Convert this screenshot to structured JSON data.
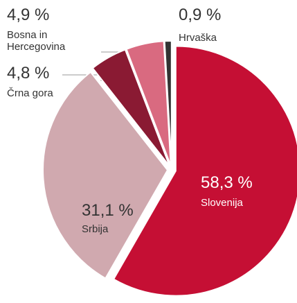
{
  "chart_data": {
    "type": "pie",
    "categories": [
      "Slovenija",
      "Srbija",
      "Črna gora",
      "Bosna in Hercegovina",
      "Hrvaška"
    ],
    "values": [
      58.3,
      31.1,
      4.8,
      4.9,
      0.9
    ],
    "value_labels": [
      "58,3 %",
      "31,1 %",
      "4,8 %",
      "4,9 %",
      "0,9 %"
    ],
    "colors": [
      "#c50f34",
      "#d0a9af",
      "#8a1a33",
      "#d96a80",
      "#333333"
    ]
  }
}
